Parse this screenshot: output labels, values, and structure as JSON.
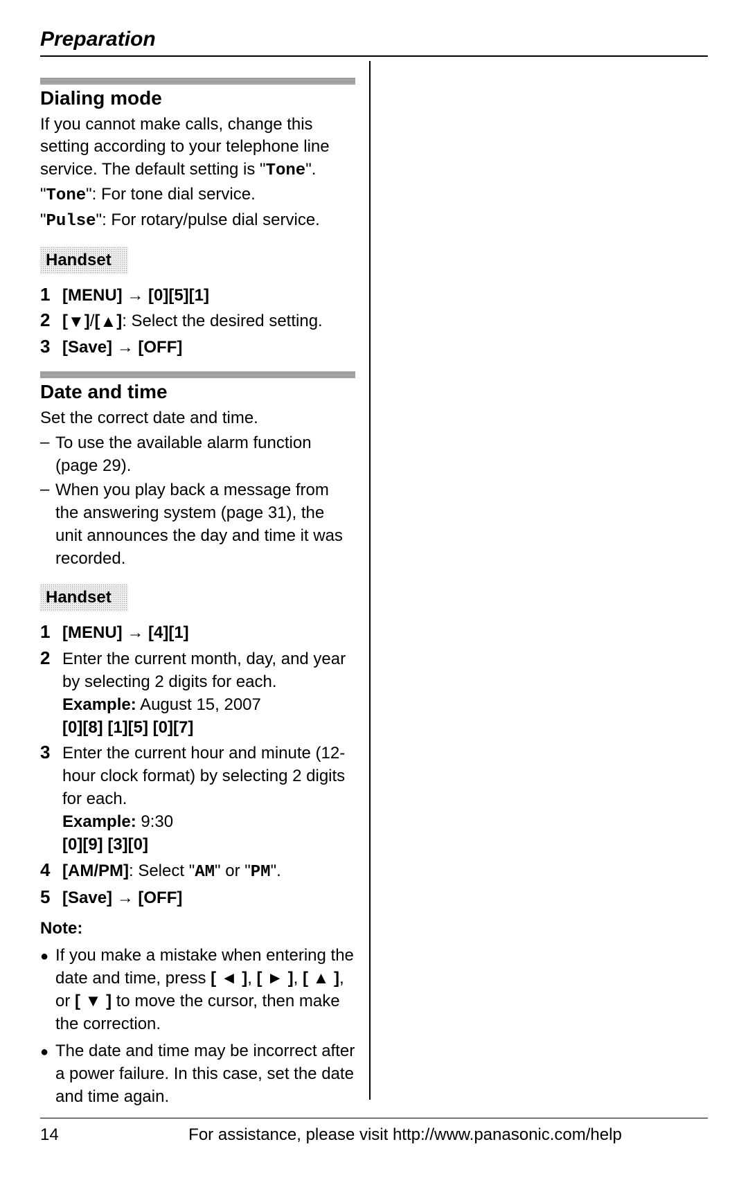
{
  "header": {
    "title": "Preparation"
  },
  "section1": {
    "title": "Dialing mode",
    "intro": "If you cannot make calls, change this setting according to your telephone line service. The default setting is \"",
    "default_val": "Tone",
    "intro_end": "\".",
    "tone_label": "Tone",
    "tone_desc": "\": For tone dial service.",
    "pulse_label": "Pulse",
    "pulse_desc": "\": For rotary/pulse dial service.",
    "subheader": "Handset",
    "steps": {
      "s1": {
        "num": "1",
        "menu": "[MENU]",
        "arrow": "→",
        "keys": "[0][5][1]"
      },
      "s2": {
        "num": "2",
        "text": ": Select the desired setting."
      },
      "s3": {
        "num": "3",
        "save": "[Save]",
        "arrow": "→",
        "off": "[OFF]"
      }
    }
  },
  "section2": {
    "title": "Date and time",
    "intro": "Set the correct date and time.",
    "d1": "To use the available alarm function (page 29).",
    "d2": "When you play back a message from the answering system (page 31), the unit announces the day and time it was recorded.",
    "subheader": "Handset",
    "steps": {
      "s1": {
        "num": "1",
        "menu": "[MENU]",
        "arrow": "→",
        "keys": "[4][1]"
      },
      "s2": {
        "num": "2",
        "text": "Enter the current month, day, and year by selecting 2 digits for each.",
        "example_label": "Example:",
        "example_val": " August 15, 2007",
        "keys": "[0][8] [1][5] [0][7]"
      },
      "s3": {
        "num": "3",
        "text": "Enter the current hour and minute (12-hour clock format) by selecting 2 digits for each.",
        "example_label": "Example:",
        "example_val": " 9:30",
        "keys": "[0][9] [3][0]"
      },
      "s4": {
        "num": "4",
        "ampm": "[AM/PM]",
        "text": ": Select \"",
        "am": "AM",
        "mid": "\" or \"",
        "pm": "PM",
        "end": "\"."
      },
      "s5": {
        "num": "5",
        "save": "[Save]",
        "arrow": "→",
        "off": "[OFF]"
      }
    },
    "note_label": "Note:",
    "note1a": "If you make a mistake when entering the date and time, press ",
    "note1b": ", ",
    "note1c": ", ",
    "note1d": ", or ",
    "note1e": " to move the cursor, then make the correction.",
    "note2": "The date and time may be incorrect after a power failure. In this case, set the date and time again."
  },
  "footer": {
    "page": "14",
    "text": "For assistance, please visit http://www.panasonic.com/help"
  }
}
